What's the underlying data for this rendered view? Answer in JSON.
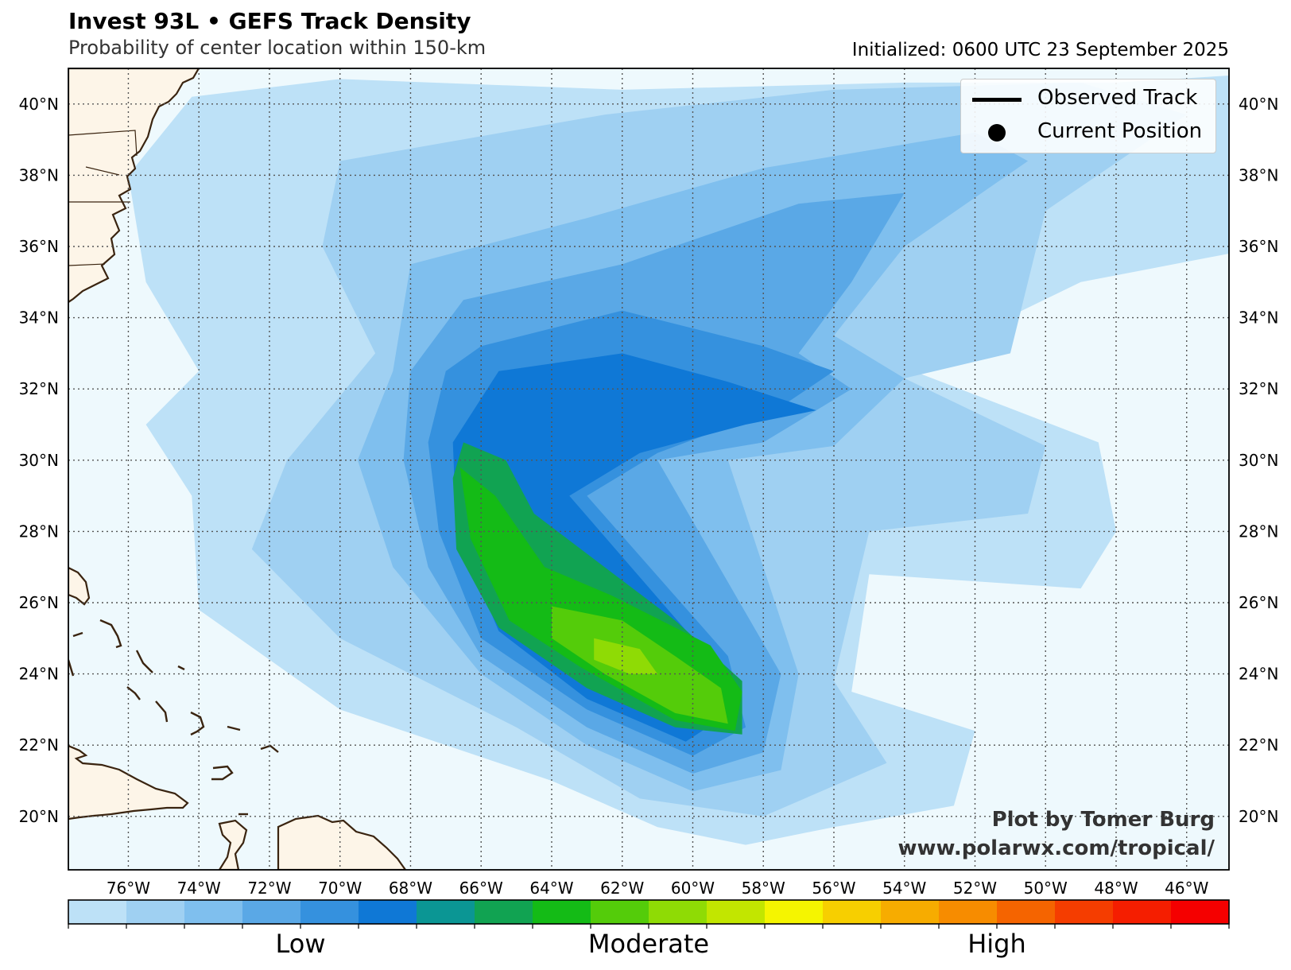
{
  "header": {
    "title": "Invest 93L • GEFS Track Density",
    "subtitle": "Probability of center location within 150-km",
    "initialized": "Initialized: 0600 UTC 23 September 2025"
  },
  "map": {
    "lon_range": [
      -77.7,
      -44.8
    ],
    "lat_range": [
      18.5,
      41.0
    ],
    "lon_ticks": [
      "76°W",
      "74°W",
      "72°W",
      "70°W",
      "68°W",
      "66°W",
      "64°W",
      "62°W",
      "60°W",
      "58°W",
      "56°W",
      "54°W",
      "52°W",
      "50°W",
      "48°W",
      "46°W"
    ],
    "lat_ticks": [
      "20°N",
      "22°N",
      "24°N",
      "26°N",
      "28°N",
      "30°N",
      "32°N",
      "34°N",
      "36°N",
      "38°N",
      "40°N"
    ],
    "ocean_color": "#eef9fd",
    "land_color": "#fdf5e8",
    "coast_color": "#3a2410",
    "grid": "dotted"
  },
  "legend": {
    "items": [
      {
        "label": "Observed Track",
        "symbol": "line"
      },
      {
        "label": "Current Position",
        "symbol": "dot"
      }
    ],
    "placement": "top-right"
  },
  "colorbar": {
    "colors": [
      "#bde1f7",
      "#9fd0f2",
      "#7fbfee",
      "#5aa8e6",
      "#3591de",
      "#0f78d6",
      "#0b9694",
      "#11a352",
      "#14bb16",
      "#54cc0a",
      "#8fdb05",
      "#c2e600",
      "#f5f500",
      "#f7cf00",
      "#f7ac00",
      "#f78c00",
      "#f56400",
      "#f53d00",
      "#f51e00",
      "#f50000"
    ],
    "labels": [
      {
        "text": "Low",
        "position": 0.2
      },
      {
        "text": "Moderate",
        "position": 0.5
      },
      {
        "text": "High",
        "position": 0.8
      }
    ]
  },
  "credit": {
    "line1": "Plot by Tomer Burg",
    "line2": "www.polarwx.com/tropical/"
  },
  "density_levels": [
    {
      "level": 1,
      "path": [
        [
          -74.2,
          40.2
        ],
        [
          -70,
          40.7
        ],
        [
          -62,
          40.4
        ],
        [
          -54,
          40.6
        ],
        [
          -48,
          40.6
        ],
        [
          -44.8,
          40.8
        ],
        [
          -44.8,
          35.8
        ],
        [
          -49,
          35
        ],
        [
          -54,
          32.6
        ],
        [
          -48.5,
          30.5
        ],
        [
          -48,
          28
        ],
        [
          -49,
          26.4
        ],
        [
          -55,
          26.8
        ],
        [
          -55.5,
          23.5
        ],
        [
          -52,
          22.4
        ],
        [
          -52.6,
          20.3
        ],
        [
          -56,
          19.7
        ],
        [
          -58.5,
          19.2
        ],
        [
          -61,
          19.7
        ],
        [
          -64,
          21
        ],
        [
          -70,
          23
        ],
        [
          -74,
          25.8
        ],
        [
          -74.2,
          29
        ],
        [
          -75.5,
          31
        ],
        [
          -74,
          32.5
        ],
        [
          -75.5,
          35
        ],
        [
          -76,
          38
        ],
        [
          -74.2,
          40.2
        ]
      ]
    },
    {
      "level": 2,
      "path": [
        [
          -70,
          38.4
        ],
        [
          -62.5,
          39.7
        ],
        [
          -56,
          40.4
        ],
        [
          -49,
          40.6
        ],
        [
          -46,
          39.7
        ],
        [
          -50,
          37
        ],
        [
          -51,
          33
        ],
        [
          -54,
          32.3
        ],
        [
          -50,
          30.4
        ],
        [
          -50.5,
          28.5
        ],
        [
          -55,
          28
        ],
        [
          -56,
          23.8
        ],
        [
          -54.5,
          21.5
        ],
        [
          -58,
          20
        ],
        [
          -61.5,
          20.5
        ],
        [
          -65,
          22.5
        ],
        [
          -70,
          25
        ],
        [
          -72.5,
          27.5
        ],
        [
          -71.5,
          30
        ],
        [
          -69,
          33
        ],
        [
          -70.5,
          36
        ],
        [
          -70,
          38.4
        ]
      ]
    },
    {
      "level": 3,
      "path": [
        [
          -68,
          35.5
        ],
        [
          -63,
          36.8
        ],
        [
          -58,
          38.2
        ],
        [
          -52,
          39.2
        ],
        [
          -50.5,
          38.4
        ],
        [
          -54,
          36
        ],
        [
          -56,
          33.5
        ],
        [
          -54,
          32.3
        ],
        [
          -56,
          30.4
        ],
        [
          -59,
          30
        ],
        [
          -57,
          24
        ],
        [
          -57.5,
          21.3
        ],
        [
          -60,
          20.7
        ],
        [
          -63,
          22
        ],
        [
          -66,
          24
        ],
        [
          -68.5,
          27
        ],
        [
          -69.5,
          30
        ],
        [
          -68.5,
          32.5
        ],
        [
          -68,
          35.5
        ]
      ]
    },
    {
      "level": 4,
      "path": [
        [
          -66.5,
          34.5
        ],
        [
          -62,
          35.5
        ],
        [
          -57,
          37.2
        ],
        [
          -54,
          37.5
        ],
        [
          -55.5,
          35
        ],
        [
          -57,
          33
        ],
        [
          -55.5,
          32
        ],
        [
          -58,
          30.5
        ],
        [
          -61,
          30
        ],
        [
          -57.5,
          24
        ],
        [
          -58,
          21.8
        ],
        [
          -60,
          21.2
        ],
        [
          -63,
          22.5
        ],
        [
          -66,
          24.5
        ],
        [
          -67.5,
          27
        ],
        [
          -68.2,
          30
        ],
        [
          -68,
          32.5
        ],
        [
          -66.5,
          34.5
        ]
      ]
    },
    {
      "level": 5,
      "path": [
        [
          -66,
          33.2
        ],
        [
          -62,
          34.2
        ],
        [
          -58,
          33.2
        ],
        [
          -56,
          32.5
        ],
        [
          -57.5,
          31.5
        ],
        [
          -61,
          30.2
        ],
        [
          -63,
          29
        ],
        [
          -59,
          24.5
        ],
        [
          -58.5,
          22.5
        ],
        [
          -60,
          21.7
        ],
        [
          -63,
          23
        ],
        [
          -66,
          25
        ],
        [
          -67.2,
          28
        ],
        [
          -67.5,
          30.5
        ],
        [
          -67,
          32.5
        ],
        [
          -66,
          33.2
        ]
      ]
    },
    {
      "level": 6,
      "path": [
        [
          -65.5,
          32.5
        ],
        [
          -62,
          33
        ],
        [
          -59,
          32.2
        ],
        [
          -56.5,
          31.4
        ],
        [
          -58.5,
          31
        ],
        [
          -61.5,
          30.2
        ],
        [
          -63.5,
          29
        ],
        [
          -60,
          25
        ],
        [
          -58.8,
          23
        ],
        [
          -60.2,
          22.1
        ],
        [
          -63,
          23.3
        ],
        [
          -65.5,
          25.2
        ],
        [
          -66.7,
          28
        ],
        [
          -66.8,
          30.5
        ],
        [
          -65.5,
          32.5
        ]
      ]
    },
    {
      "level": 8,
      "path": [
        [
          -66.5,
          30.5
        ],
        [
          -65.3,
          30
        ],
        [
          -64.5,
          28.5
        ],
        [
          -62.5,
          27
        ],
        [
          -60.5,
          25.5
        ],
        [
          -58.6,
          23.8
        ],
        [
          -58.6,
          22.3
        ],
        [
          -60.5,
          22.5
        ],
        [
          -63,
          23.6
        ],
        [
          -65.5,
          25.3
        ],
        [
          -66.7,
          27.5
        ],
        [
          -66.8,
          29.5
        ],
        [
          -66.5,
          30.5
        ]
      ]
    },
    {
      "level": 9,
      "path": [
        [
          -66.6,
          29.8
        ],
        [
          -65.6,
          29
        ],
        [
          -64.2,
          27
        ],
        [
          -62.3,
          26.2
        ],
        [
          -59.5,
          24.8
        ],
        [
          -58.6,
          23.5
        ],
        [
          -58.8,
          22.4
        ],
        [
          -60.5,
          22.7
        ],
        [
          -63.2,
          24.2
        ],
        [
          -65.2,
          25.5
        ],
        [
          -66.3,
          27.8
        ],
        [
          -66.6,
          29.8
        ]
      ]
    },
    {
      "level": 10,
      "path": [
        [
          -64,
          25.9
        ],
        [
          -62,
          25.5
        ],
        [
          -60.5,
          24.5
        ],
        [
          -59.2,
          23.6
        ],
        [
          -59,
          22.6
        ],
        [
          -60.5,
          22.9
        ],
        [
          -62.5,
          24
        ],
        [
          -64,
          25
        ],
        [
          -64,
          25.9
        ]
      ]
    },
    {
      "level": 11,
      "path": [
        [
          -62.8,
          25
        ],
        [
          -61.5,
          24.7
        ],
        [
          -61,
          24
        ],
        [
          -61.8,
          24
        ],
        [
          -62.8,
          24.4
        ],
        [
          -62.8,
          25
        ]
      ]
    }
  ]
}
